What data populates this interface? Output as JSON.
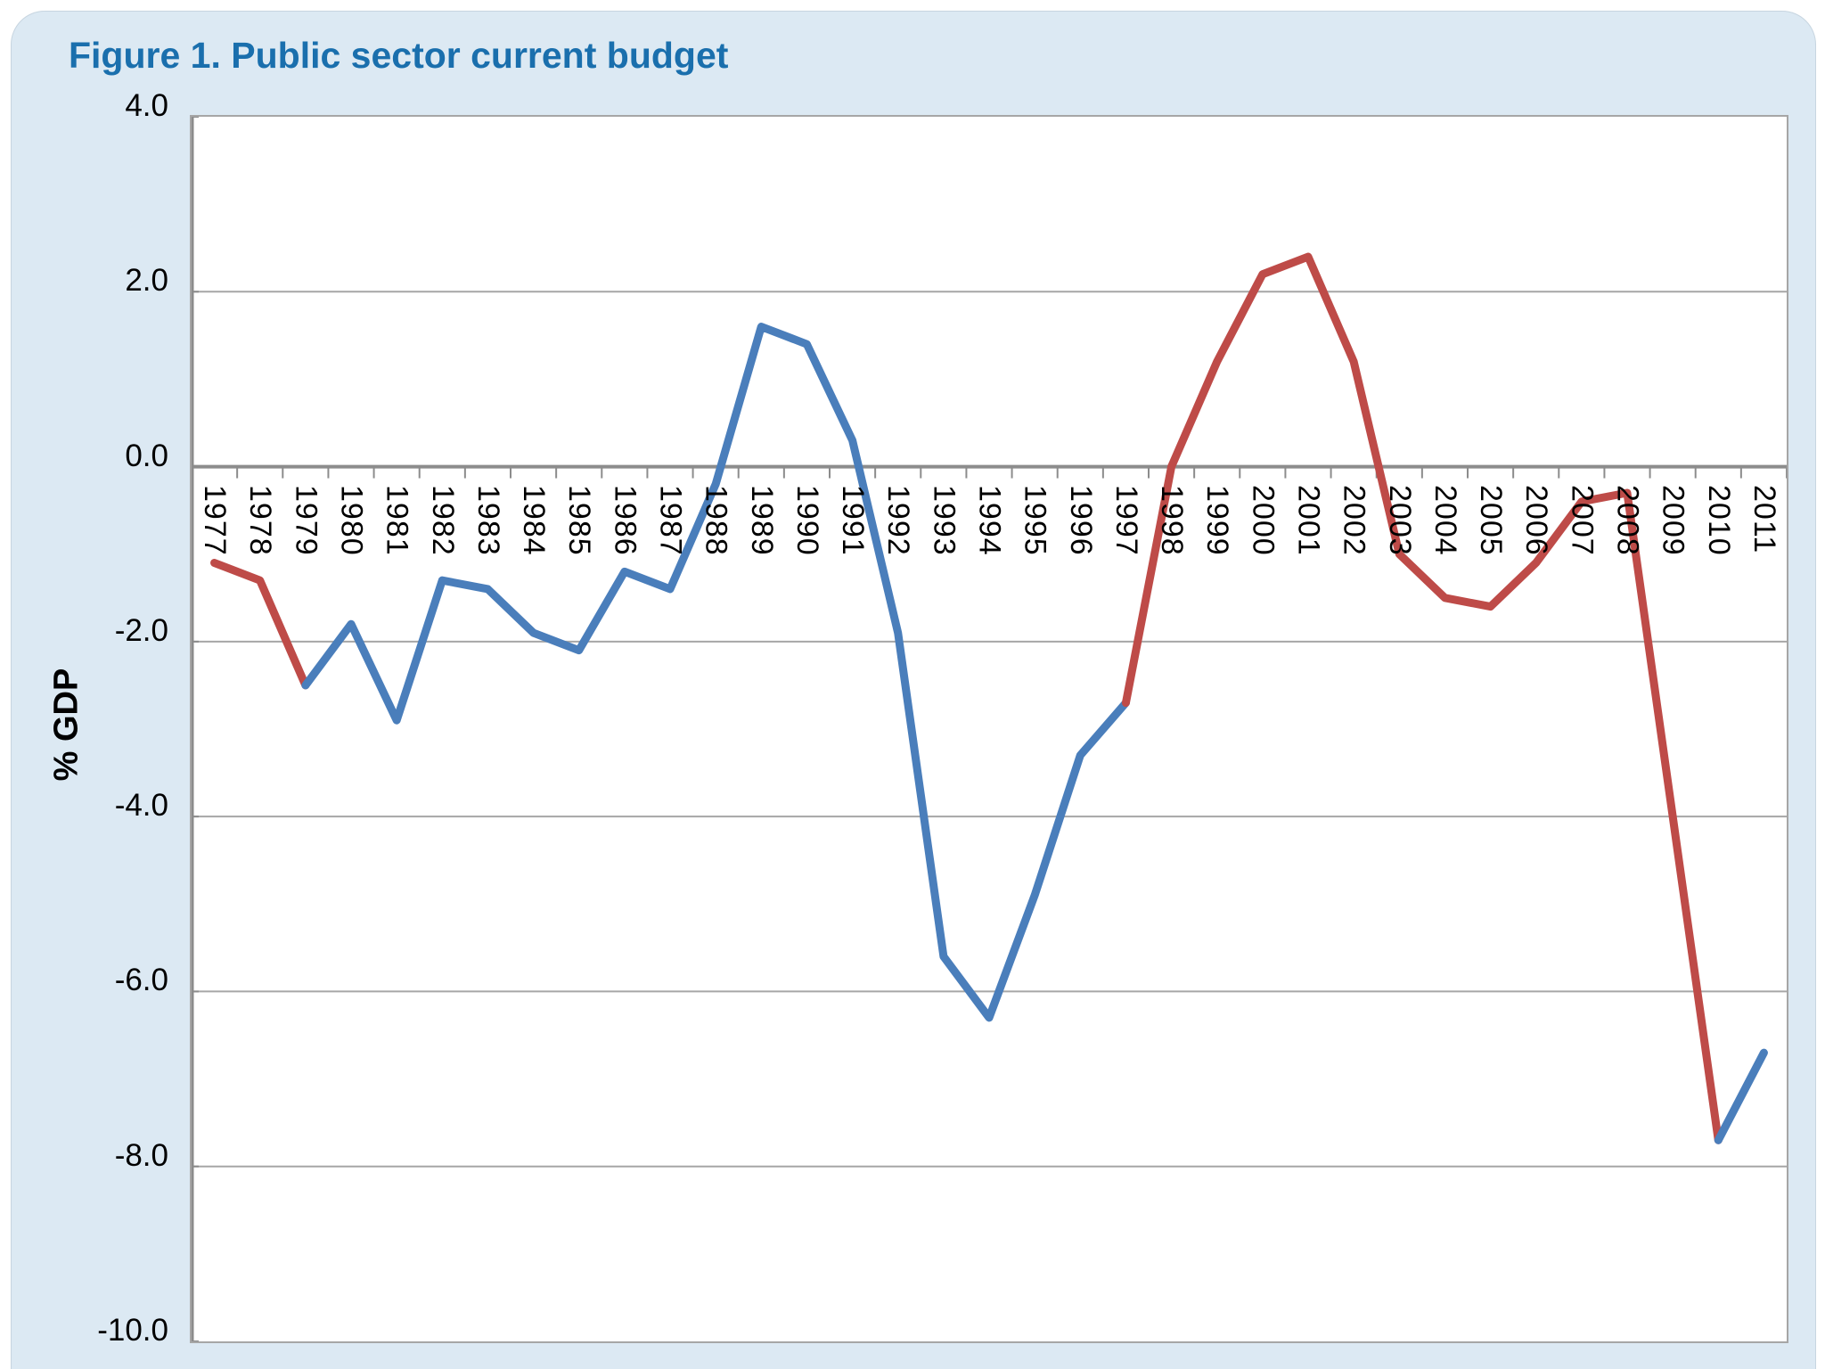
{
  "title": "Figure 1. Public sector current budget",
  "chart_data": {
    "type": "line",
    "title": "Figure 1. Public sector current budget",
    "xlabel": "",
    "ylabel": "% GDP",
    "ylim": [
      -10.0,
      4.0
    ],
    "ytick_step": 2.0,
    "ytick_labels": [
      "4.0",
      "2.0",
      "0.0",
      "-2.0",
      "-4.0",
      "-6.0",
      "-8.0",
      "-10.0"
    ],
    "grid": "horizontal gridlines every 2.0, category axis at 0.0 with down ticks",
    "legend_position": "none",
    "categories": [
      1977,
      1978,
      1979,
      1980,
      1981,
      1982,
      1983,
      1984,
      1985,
      1986,
      1987,
      1988,
      1989,
      1990,
      1991,
      1992,
      1993,
      1994,
      1995,
      1996,
      1997,
      1998,
      1999,
      2000,
      2001,
      2002,
      2003,
      2004,
      2005,
      2006,
      2007,
      2008,
      2009,
      2010,
      2011
    ],
    "series": [
      {
        "name": "Public sector current budget (% GDP)",
        "values": [
          -1.1,
          -1.3,
          -2.5,
          -1.8,
          -2.9,
          -1.3,
          -1.4,
          -1.9,
          -2.1,
          -1.2,
          -1.4,
          -0.2,
          1.6,
          1.4,
          0.3,
          -1.9,
          -5.6,
          -6.3,
          -4.9,
          -3.3,
          -2.7,
          0.0,
          1.2,
          2.2,
          2.4,
          1.2,
          -1.0,
          -1.5,
          -1.6,
          -1.1,
          -0.4,
          -0.3,
          -4.0,
          -7.7,
          -6.7
        ]
      }
    ],
    "color_segments": [
      {
        "color_key": "red",
        "from_index": 0,
        "to_index": 2
      },
      {
        "color_key": "blue",
        "from_index": 2,
        "to_index": 20
      },
      {
        "color_key": "red",
        "from_index": 20,
        "to_index": 33
      },
      {
        "color_key": "blue",
        "from_index": 33,
        "to_index": 34
      }
    ],
    "colors": {
      "red": "#BE4B48",
      "blue": "#4A7EBB",
      "gridline": "#A6A6A6",
      "axis": "#8C8C8C",
      "plot_background": "#FFFFFF",
      "chart_background": "#DCE9F3",
      "title_text": "#1A6FAD",
      "tick_text": "#000000"
    }
  }
}
